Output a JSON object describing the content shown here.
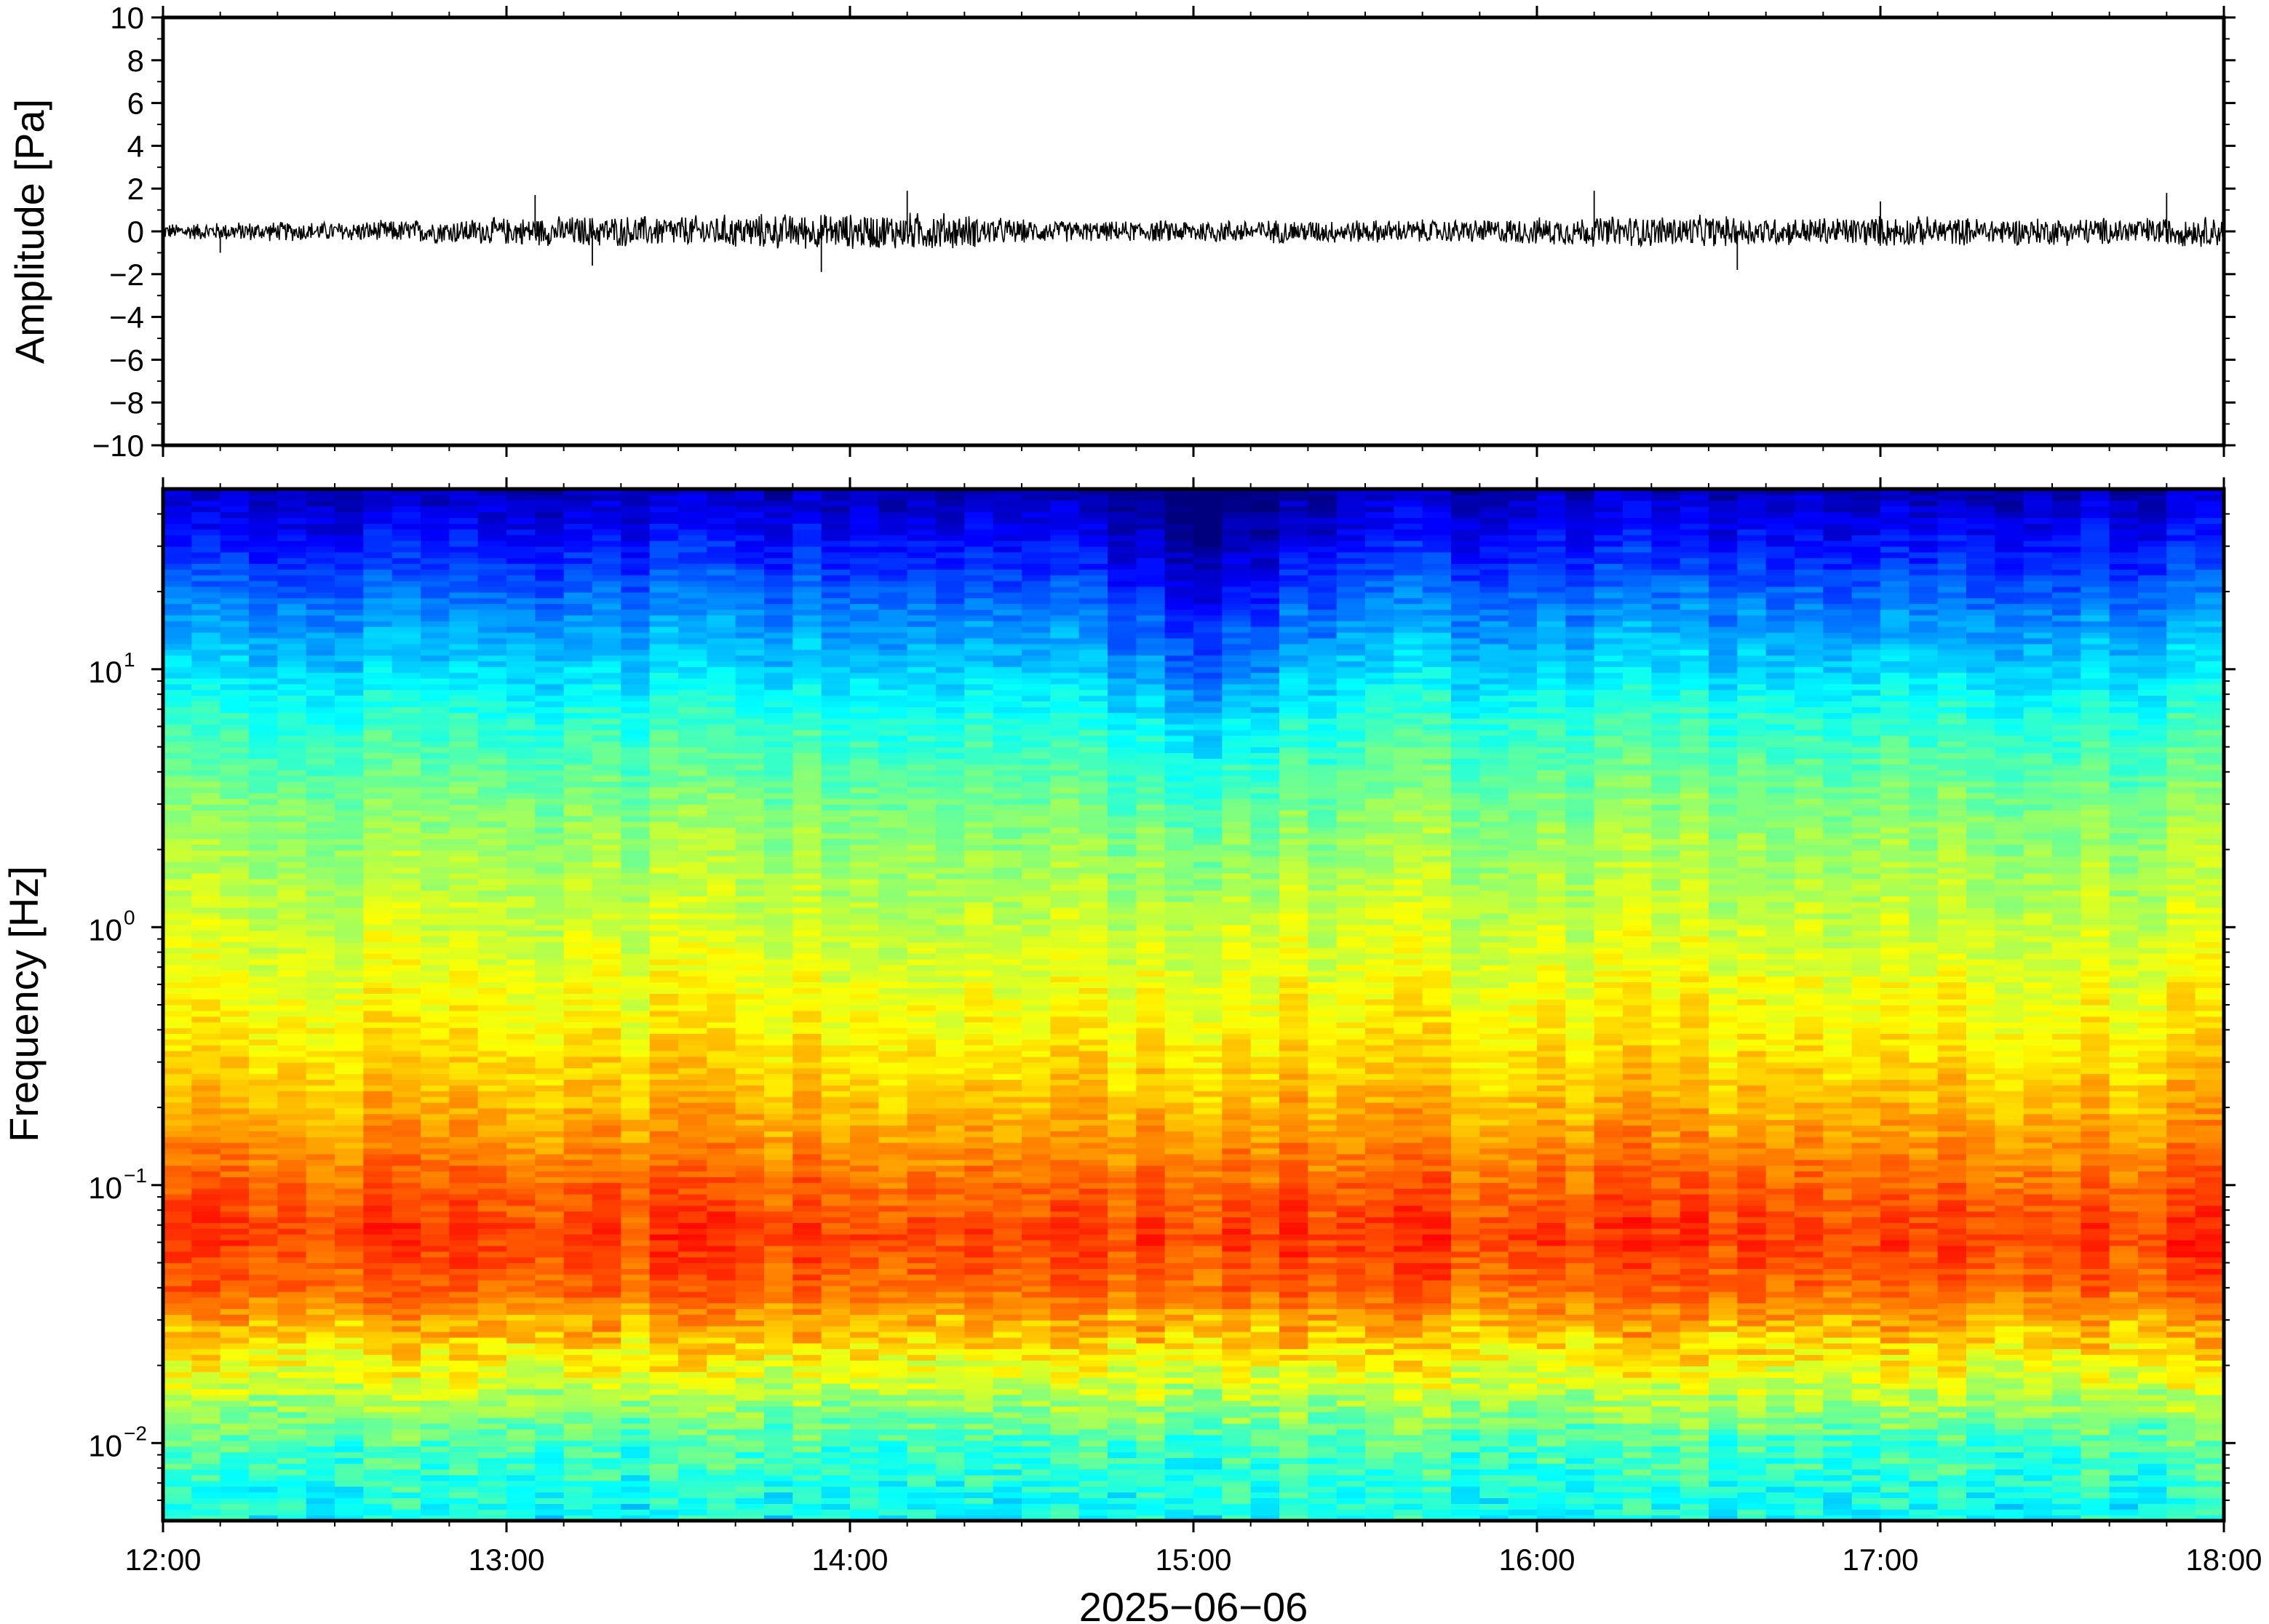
{
  "chart_data": [
    {
      "type": "line",
      "panel": "waveform",
      "title": "",
      "ylabel": "Amplitude [Pa]",
      "ylim": [
        -10,
        10
      ],
      "yticks": [
        10,
        8,
        6,
        4,
        2,
        0,
        -2,
        -4,
        -6,
        -8,
        -10
      ],
      "ytick_labels": [
        "10",
        "8",
        "6",
        "4",
        "2",
        "0",
        "−2",
        "−4",
        "−6",
        "−8",
        "−10"
      ],
      "xlim": [
        "12:00",
        "18:00"
      ],
      "line_color": "#000000",
      "envelope": {
        "description_hours": [
          12.0,
          12.25,
          12.5,
          12.75,
          13.0,
          13.25,
          13.5,
          13.75,
          14.0,
          14.25,
          14.5,
          14.75,
          15.0,
          15.25,
          15.5,
          15.75,
          16.0,
          16.25,
          16.5,
          16.75,
          17.0,
          17.25,
          17.5,
          17.75,
          18.0
        ],
        "amplitude_pa": [
          0.4,
          0.5,
          0.5,
          0.6,
          0.7,
          0.8,
          0.8,
          0.9,
          0.9,
          1.0,
          0.6,
          0.5,
          0.6,
          0.6,
          0.6,
          0.6,
          0.7,
          0.8,
          0.8,
          0.7,
          0.8,
          0.7,
          0.7,
          0.7,
          0.8
        ]
      },
      "spikes": [
        {
          "x": "13:05",
          "y": 1.7
        },
        {
          "x": "13:15",
          "y": -1.6
        },
        {
          "x": "14:10",
          "y": 1.9
        },
        {
          "x": "13:55",
          "y": -1.9
        },
        {
          "x": "16:10",
          "y": 1.9
        },
        {
          "x": "16:35",
          "y": -1.8
        },
        {
          "x": "17:00",
          "y": 1.4
        },
        {
          "x": "17:50",
          "y": 1.8
        },
        {
          "x": "12:10",
          "y": -1.0
        }
      ]
    },
    {
      "type": "heatmap",
      "panel": "spectrogram",
      "title": "",
      "xlabel": "2025−06−06",
      "ylabel": "Frequency [Hz]",
      "yscale": "log",
      "ylim": [
        0.005,
        50
      ],
      "yticks": [
        0.01,
        0.1,
        1,
        10
      ],
      "ytick_labels": [
        {
          "base": "10",
          "exp": "−2"
        },
        {
          "base": "10",
          "exp": "−1"
        },
        {
          "base": "10",
          "exp": "0"
        },
        {
          "base": "10",
          "exp": "1"
        }
      ],
      "xlim": [
        "12:00",
        "18:00"
      ],
      "xticks": [
        "12:00",
        "13:00",
        "14:00",
        "15:00",
        "16:00",
        "17:00",
        "18:00"
      ],
      "colormap": "jet",
      "colormap_stops": [
        "#00007f",
        "#0000ff",
        "#007fff",
        "#00ffff",
        "#7fff7f",
        "#ffff00",
        "#ff7f00",
        "#ff0000",
        "#7f0000"
      ],
      "frequency_profile": {
        "log10_freq": [
          -2.3,
          -2.0,
          -1.7,
          -1.4,
          -1.2,
          -1.0,
          -0.7,
          -0.4,
          0.0,
          0.4,
          0.8,
          1.0,
          1.2,
          1.4,
          1.7
        ],
        "relative_power": [
          0.38,
          0.45,
          0.62,
          0.78,
          0.82,
          0.78,
          0.7,
          0.64,
          0.58,
          0.52,
          0.42,
          0.34,
          0.27,
          0.18,
          0.06
        ]
      },
      "quiet_interval": {
        "start": "14:35",
        "end": "15:30",
        "note_level": "lower power above 1 Hz"
      }
    }
  ]
}
